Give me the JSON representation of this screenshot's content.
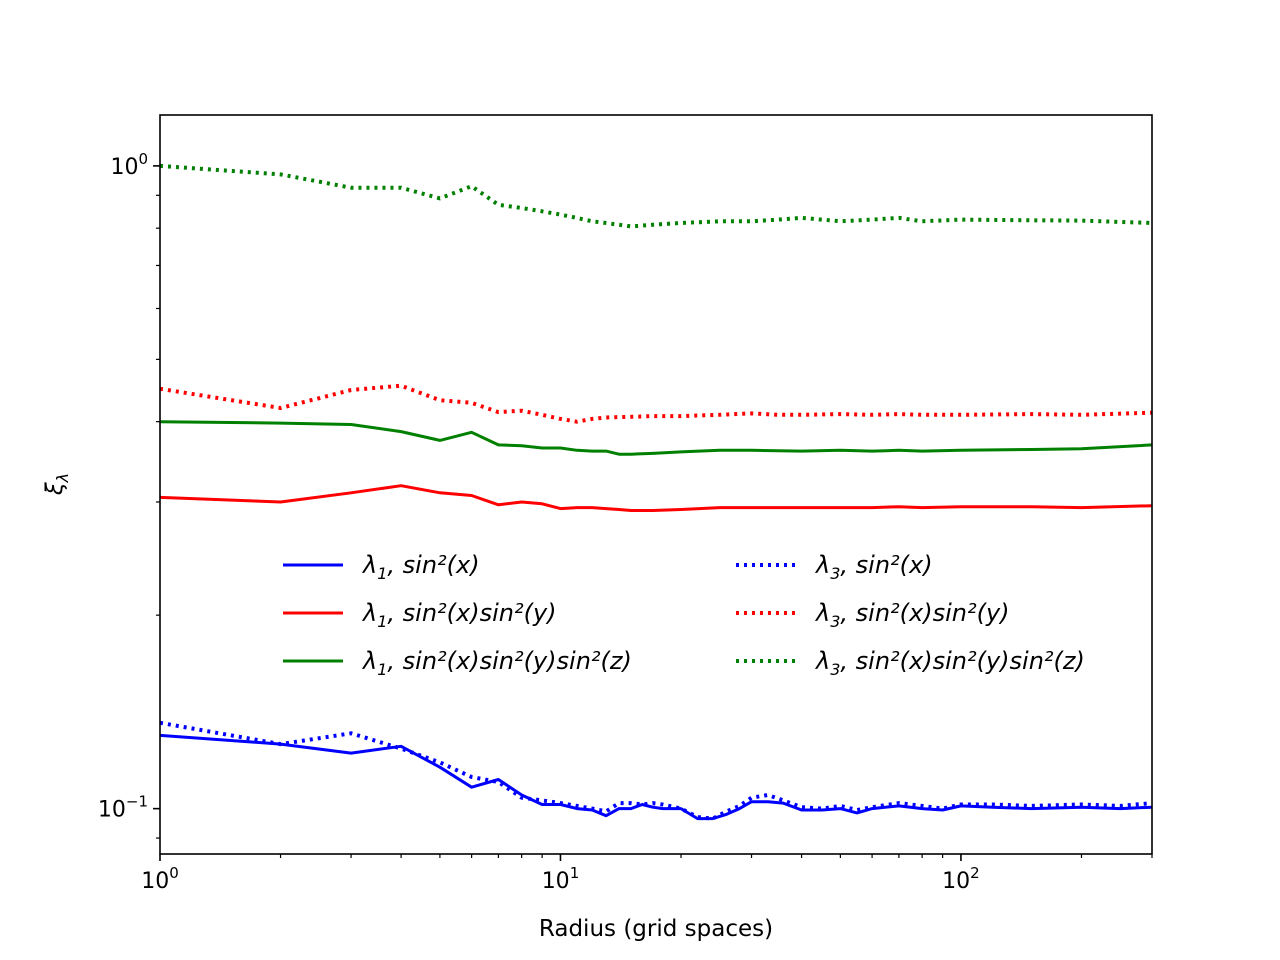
{
  "chart_data": {
    "type": "line",
    "title": "",
    "xlabel": "Radius (grid spaces)",
    "ylabel": "ξ_λ",
    "xscale": "log",
    "yscale": "log",
    "xlim": [
      1,
      300
    ],
    "ylim": [
      0.085,
      1.2
    ],
    "x_ticks": [
      {
        "value": 1,
        "base": "10",
        "exp": "0"
      },
      {
        "value": 10,
        "base": "10",
        "exp": "1"
      },
      {
        "value": 100,
        "base": "10",
        "exp": "2"
      }
    ],
    "y_ticks": [
      {
        "value": 0.1,
        "base": "10",
        "exp": "−1"
      },
      {
        "value": 1,
        "base": "10",
        "exp": "0"
      }
    ],
    "grid": false,
    "legend": {
      "placement": "center",
      "columns": 2
    },
    "series": [
      {
        "name": "λ1, sin²(x)",
        "legend_parts": {
          "lambda_sub": "1",
          "func": "sin²(x)"
        },
        "color": "#0000ff",
        "style": "solid",
        "x": [
          1,
          2,
          3,
          4,
          5,
          6,
          7,
          8,
          9,
          10,
          11,
          12,
          13,
          14,
          15,
          16,
          17,
          18,
          20,
          22,
          24,
          26,
          28,
          30,
          33,
          36,
          40,
          45,
          50,
          55,
          60,
          70,
          80,
          90,
          100,
          120,
          150,
          200,
          250,
          300
        ],
        "y": [
          0.13,
          0.126,
          0.122,
          0.125,
          0.116,
          0.108,
          0.111,
          0.105,
          0.1015,
          0.1015,
          0.1,
          0.0995,
          0.0975,
          0.1,
          0.1,
          0.1015,
          0.1005,
          0.1,
          0.1,
          0.0965,
          0.0965,
          0.098,
          0.1,
          0.1025,
          0.1025,
          0.102,
          0.0995,
          0.0995,
          0.1,
          0.0985,
          0.1,
          0.101,
          0.1,
          0.0995,
          0.101,
          0.1005,
          0.1,
          0.1005,
          0.1,
          0.1005
        ]
      },
      {
        "name": "λ1, sin²(x)sin²(y)",
        "legend_parts": {
          "lambda_sub": "1",
          "func": "sin²(x)sin²(y)"
        },
        "color": "#ff0000",
        "style": "solid",
        "x": [
          1,
          2,
          3,
          4,
          5,
          6,
          7,
          8,
          9,
          10,
          11,
          12,
          13,
          14,
          15,
          17,
          20,
          25,
          30,
          40,
          50,
          60,
          70,
          80,
          100,
          150,
          200,
          300
        ],
        "y": [
          0.305,
          0.3,
          0.31,
          0.318,
          0.31,
          0.307,
          0.297,
          0.3,
          0.298,
          0.293,
          0.294,
          0.294,
          0.293,
          0.292,
          0.291,
          0.291,
          0.292,
          0.294,
          0.294,
          0.294,
          0.294,
          0.294,
          0.295,
          0.294,
          0.295,
          0.295,
          0.294,
          0.296
        ]
      },
      {
        "name": "λ1, sin²(x)sin²(y)sin²(z)",
        "legend_parts": {
          "lambda_sub": "1",
          "func": "sin²(x)sin²(y)sin²(z)"
        },
        "color": "#008000",
        "style": "solid",
        "x": [
          1,
          2,
          3,
          4,
          5,
          6,
          7,
          8,
          9,
          10,
          11,
          12,
          13,
          14,
          15,
          17,
          20,
          25,
          30,
          40,
          50,
          60,
          70,
          80,
          100,
          150,
          200,
          300
        ],
        "y": [
          0.4,
          0.398,
          0.396,
          0.386,
          0.374,
          0.385,
          0.368,
          0.367,
          0.364,
          0.364,
          0.361,
          0.36,
          0.36,
          0.356,
          0.356,
          0.357,
          0.359,
          0.361,
          0.361,
          0.36,
          0.361,
          0.36,
          0.361,
          0.36,
          0.361,
          0.362,
          0.363,
          0.368
        ]
      },
      {
        "name": "λ3, sin²(x)",
        "legend_parts": {
          "lambda_sub": "3",
          "func": "sin²(x)"
        },
        "color": "#0000ff",
        "style": "dotted",
        "x": [
          1,
          2,
          3,
          4,
          5,
          6,
          7,
          8,
          9,
          10,
          11,
          12,
          13,
          14,
          15,
          16,
          17,
          18,
          20,
          22,
          24,
          26,
          28,
          30,
          33,
          36,
          40,
          45,
          50,
          55,
          60,
          70,
          80,
          90,
          100,
          120,
          150,
          200,
          250,
          300
        ],
        "y": [
          0.136,
          0.126,
          0.131,
          0.124,
          0.118,
          0.112,
          0.11,
          0.104,
          0.103,
          0.102,
          0.101,
          0.1,
          0.099,
          0.102,
          0.102,
          0.1015,
          0.102,
          0.1015,
          0.1,
          0.097,
          0.0965,
          0.099,
          0.101,
          0.104,
          0.105,
          0.103,
          0.1005,
          0.1,
          0.101,
          0.0995,
          0.1005,
          0.102,
          0.101,
          0.1,
          0.1015,
          0.1015,
          0.101,
          0.1015,
          0.101,
          0.102
        ]
      },
      {
        "name": "λ3, sin²(x)sin²(y)",
        "legend_parts": {
          "lambda_sub": "3",
          "func": "sin²(x)sin²(y)"
        },
        "color": "#ff0000",
        "style": "dotted",
        "x": [
          1,
          2,
          3,
          4,
          5,
          6,
          7,
          8,
          9,
          10,
          11,
          12,
          13,
          15,
          17,
          20,
          25,
          30,
          35,
          40,
          50,
          60,
          70,
          80,
          100,
          150,
          200,
          300
        ],
        "y": [
          0.45,
          0.42,
          0.448,
          0.455,
          0.432,
          0.428,
          0.414,
          0.416,
          0.41,
          0.404,
          0.4,
          0.404,
          0.406,
          0.407,
          0.408,
          0.408,
          0.41,
          0.412,
          0.41,
          0.41,
          0.411,
          0.41,
          0.411,
          0.41,
          0.41,
          0.411,
          0.41,
          0.413
        ]
      },
      {
        "name": "λ3, sin²(x)sin²(y)sin²(z)",
        "legend_parts": {
          "lambda_sub": "3",
          "func": "sin²(x)sin²(y)sin²(z)"
        },
        "color": "#008000",
        "style": "dotted",
        "x": [
          1,
          2,
          3,
          4,
          5,
          6,
          7,
          8,
          9,
          10,
          11,
          12,
          13,
          15,
          17,
          20,
          25,
          30,
          35,
          40,
          45,
          50,
          60,
          70,
          80,
          100,
          150,
          200,
          300
        ],
        "y": [
          1.0,
          0.97,
          0.925,
          0.925,
          0.89,
          0.93,
          0.87,
          0.86,
          0.85,
          0.84,
          0.83,
          0.82,
          0.815,
          0.805,
          0.81,
          0.815,
          0.82,
          0.82,
          0.825,
          0.83,
          0.825,
          0.82,
          0.825,
          0.83,
          0.82,
          0.825,
          0.823,
          0.822,
          0.815
        ]
      }
    ]
  }
}
